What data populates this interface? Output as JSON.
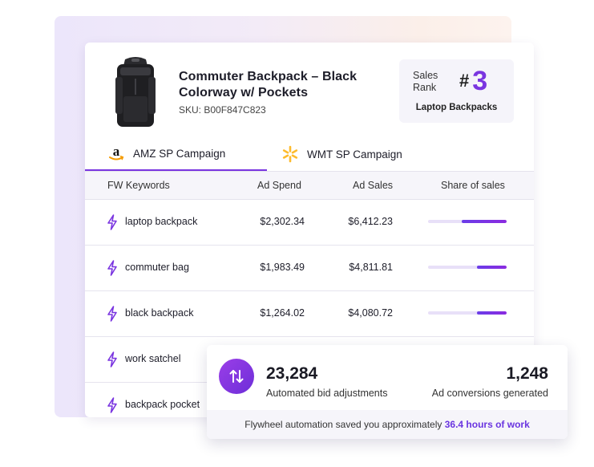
{
  "product": {
    "title": "Commuter Backpack – Black Colorway w/ Pockets",
    "sku": "SKU: B00F847C823",
    "image_icon": "backpack-image"
  },
  "rank": {
    "label": "Sales Rank",
    "hash": "#",
    "value": "3",
    "category": "Laptop Backpacks",
    "accent": "#7a35e0"
  },
  "tabs": [
    {
      "label": "AMZ SP Campaign",
      "icon": "amazon-logo-icon",
      "active": true
    },
    {
      "label": "WMT SP Campaign",
      "icon": "walmart-spark-icon",
      "active": false
    }
  ],
  "table": {
    "headers": [
      "FW Keywords",
      "Ad Spend",
      "Ad Sales",
      "Share of sales"
    ],
    "rows": [
      {
        "keyword": "laptop backpack",
        "spend": "$2,302.34",
        "sales": "$6,412.23",
        "share": 0.57
      },
      {
        "keyword": "commuter bag",
        "spend": "$1,983.49",
        "sales": "$4,811.81",
        "share": 0.38
      },
      {
        "keyword": "black backpack",
        "spend": "$1,264.02",
        "sales": "$4,080.72",
        "share": 0.38
      },
      {
        "keyword": "work satchel",
        "spend": "",
        "sales": "",
        "share": null
      },
      {
        "keyword": "backpack pocket",
        "spend": "",
        "sales": "",
        "share": null
      }
    ]
  },
  "stats": {
    "adjustments_value": "23,284",
    "adjustments_label": "Automated bid adjustments",
    "conversions_value": "1,248",
    "conversions_label": "Ad conversions generated",
    "footer_text": "Flywheel automation saved you approximately ",
    "footer_highlight": "36.4 hours of work"
  }
}
